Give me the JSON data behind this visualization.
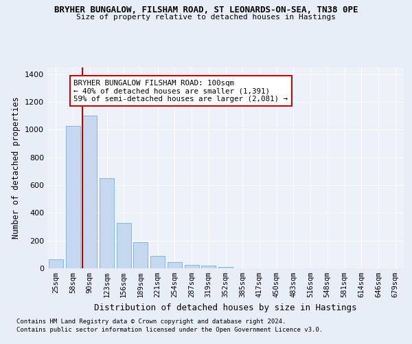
{
  "title1": "BRYHER BUNGALOW, FILSHAM ROAD, ST LEONARDS-ON-SEA, TN38 0PE",
  "title2": "Size of property relative to detached houses in Hastings",
  "xlabel": "Distribution of detached houses by size in Hastings",
  "ylabel": "Number of detached properties",
  "categories": [
    "25sqm",
    "58sqm",
    "90sqm",
    "123sqm",
    "156sqm",
    "189sqm",
    "221sqm",
    "254sqm",
    "287sqm",
    "319sqm",
    "352sqm",
    "385sqm",
    "417sqm",
    "450sqm",
    "483sqm",
    "516sqm",
    "548sqm",
    "581sqm",
    "614sqm",
    "646sqm",
    "679sqm"
  ],
  "values": [
    65,
    1025,
    1100,
    650,
    325,
    190,
    90,
    47,
    25,
    20,
    10,
    0,
    0,
    0,
    0,
    0,
    0,
    0,
    0,
    0,
    0
  ],
  "bar_color": "#c5d8f0",
  "bar_edge_color": "#7aafd4",
  "vline_x_idx": 2,
  "vline_color": "#cc0000",
  "annotation_text": "BRYHER BUNGALOW FILSHAM ROAD: 100sqm\n← 40% of detached houses are smaller (1,391)\n59% of semi-detached houses are larger (2,081) →",
  "annotation_box_color": "#ffffff",
  "annotation_box_edge_color": "#cc0000",
  "ylim": [
    0,
    1450
  ],
  "yticks": [
    0,
    200,
    400,
    600,
    800,
    1000,
    1200,
    1400
  ],
  "footnote1": "Contains HM Land Registry data © Crown copyright and database right 2024.",
  "footnote2": "Contains public sector information licensed under the Open Government Licence v3.0.",
  "bg_color": "#e8eef8",
  "plot_bg_color": "#edf1fa"
}
